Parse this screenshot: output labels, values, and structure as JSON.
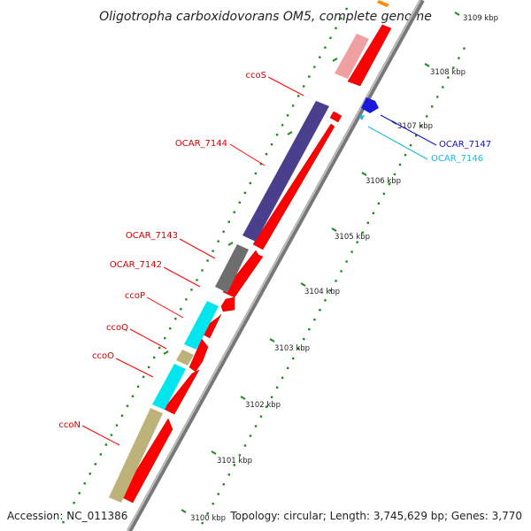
{
  "title": "Oligotropha carboxidovorans OM5, complete genome",
  "footer": {
    "accession": "Accession: NC_011386",
    "summary": "Topology: circular; Length: 3,745,629 bp; Genes: 3,770"
  },
  "scale_labels": [
    "3109 kbp",
    "3108 kbp",
    "3107 kbp",
    "3106 kbp",
    "3105 kbp",
    "3104 kbp",
    "3103 kbp",
    "3102 kbp",
    "3101 kbp",
    "3100 kbp"
  ],
  "gene_labels": {
    "ccoS": "ccoS",
    "ocar7144": "OCAR_7144",
    "ocar7143": "OCAR_7143",
    "ocar7142": "OCAR_7142",
    "ccoP": "ccoP",
    "ccoQ": "ccoQ",
    "ccoO": "ccoO",
    "ccoN": "ccoN",
    "ocar7147": "OCAR_7147",
    "ocar7146": "OCAR_7146"
  },
  "colors": {
    "cds": "#ff0000",
    "cds_faded": "#f08a8a",
    "backbone": "#8a8a8a",
    "gc_skew_ticks": "#1d8a1d",
    "label_red": "#d00000",
    "label_blue": "#1010c8",
    "label_cyan": "#18b8e0",
    "feat_navy": "#4a3f8c",
    "feat_gray": "#6e6e6e",
    "feat_cyan": "#00e5ee",
    "feat_olive": "#bdb27a",
    "feat_pink": "#f0a0a0",
    "feat_blue": "#1a1adc",
    "feat_orange": "#ff8c00"
  }
}
